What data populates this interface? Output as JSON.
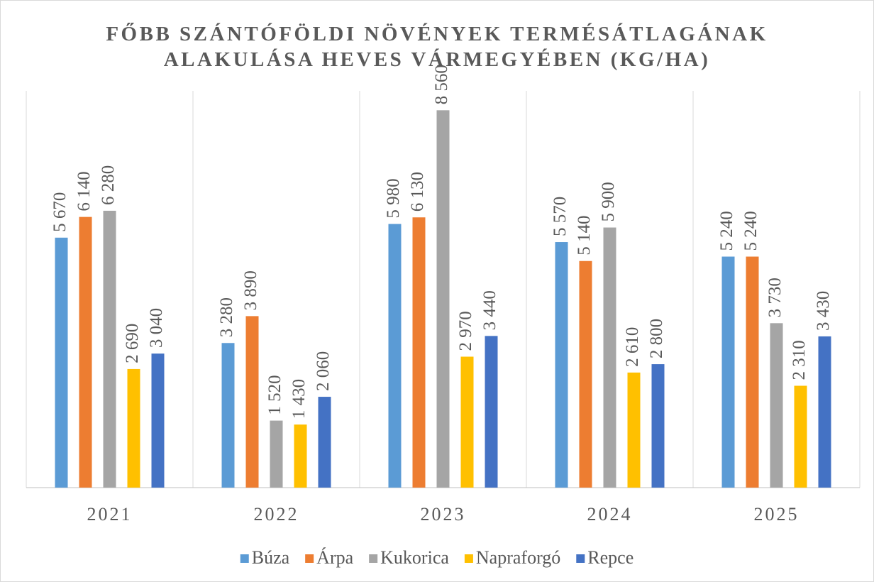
{
  "chart_data": {
    "type": "bar",
    "title": "FŐBB SZÁNTÓFÖLDI NÖVÉNYEK TERMÉSÁTLAGÁNAK ALAKULÁSA HEVES VÁRMEGYÉBEN (KG/HA)",
    "categories": [
      "2021",
      "2022",
      "2023",
      "2024",
      "2025"
    ],
    "series": [
      {
        "name": "Búza",
        "color": "#5b9bd5",
        "values": [
          5670,
          3280,
          5980,
          5570,
          5240
        ],
        "value_labels": [
          "5 670",
          "3 280",
          "5 980",
          "5 570",
          "5 240"
        ]
      },
      {
        "name": "Árpa",
        "color": "#ed7d31",
        "values": [
          6140,
          3890,
          6130,
          5140,
          5240
        ],
        "value_labels": [
          "6 140",
          "3 890",
          "6 130",
          "5 140",
          "5 240"
        ]
      },
      {
        "name": "Kukorica",
        "color": "#a5a5a5",
        "values": [
          6280,
          1520,
          8560,
          5900,
          3730
        ],
        "value_labels": [
          "6 280",
          "1 520",
          "8 560",
          "5 900",
          "3 730"
        ]
      },
      {
        "name": "Napraforgó",
        "color": "#ffc000",
        "values": [
          2690,
          1430,
          2970,
          2610,
          2310
        ],
        "value_labels": [
          "2 690",
          "1 430",
          "2 970",
          "2 610",
          "2 310"
        ]
      },
      {
        "name": "Repce",
        "color": "#4472c4",
        "values": [
          3040,
          2060,
          3440,
          2800,
          3430
        ],
        "value_labels": [
          "3 040",
          "2 060",
          "3 440",
          "2 800",
          "3 430"
        ]
      }
    ],
    "ylim": [
      0,
      9000
    ],
    "legend": "bottom"
  }
}
